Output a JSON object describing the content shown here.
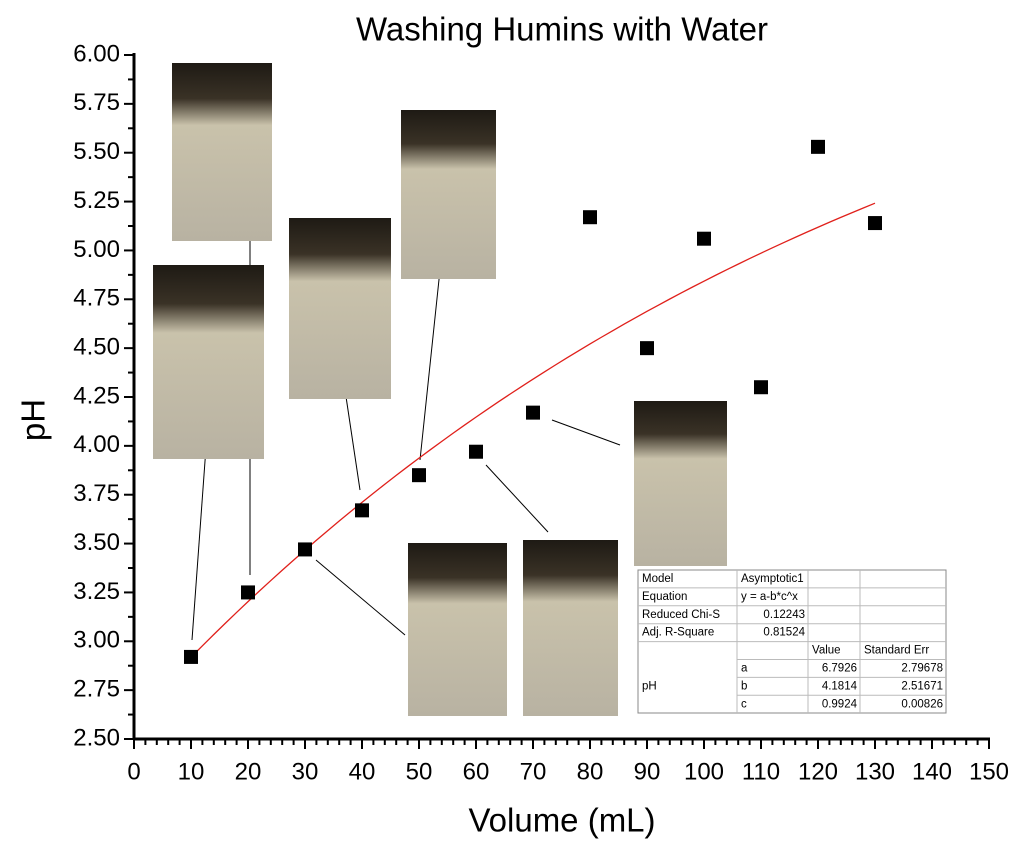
{
  "chart_data": {
    "type": "scatter",
    "title": "Washing Humins with Water",
    "x_label": "Volume (mL)",
    "y_label": "pH",
    "x": [
      10,
      20,
      30,
      40,
      50,
      60,
      70,
      80,
      90,
      100,
      110,
      120,
      130
    ],
    "values": [
      2.92,
      3.25,
      3.47,
      3.67,
      3.85,
      3.97,
      4.17,
      5.17,
      4.5,
      5.06,
      4.3,
      5.53,
      5.14
    ],
    "color": "#000000",
    "fit_color": "#e0201b",
    "xlim": [
      0,
      150
    ],
    "xticks": [
      0,
      10,
      20,
      30,
      40,
      50,
      60,
      70,
      80,
      90,
      100,
      110,
      120,
      130,
      140,
      150
    ],
    "ylim": [
      2.5,
      6.0
    ],
    "yticks": [
      {
        "value": 2.5,
        "label": "2.50"
      },
      {
        "value": 2.75,
        "label": "2.75"
      },
      {
        "value": 3.0,
        "label": "3.00"
      },
      {
        "value": 3.25,
        "label": "3.25"
      },
      {
        "value": 3.5,
        "label": "3.50"
      },
      {
        "value": 3.75,
        "label": "3.75"
      },
      {
        "value": 4.0,
        "label": "4.00"
      },
      {
        "value": 4.25,
        "label": "4.25"
      },
      {
        "value": 4.5,
        "label": "4.50"
      },
      {
        "value": 4.75,
        "label": "4.75"
      },
      {
        "value": 5.0,
        "label": "5.00"
      },
      {
        "value": 5.25,
        "label": "5.25"
      },
      {
        "value": 5.5,
        "label": "5.50"
      },
      {
        "value": 5.75,
        "label": "5.75"
      },
      {
        "value": 6.0,
        "label": "6.00"
      }
    ],
    "fit": {
      "model_label": "Model",
      "model": "Asymptotic1",
      "equation_label": "Equation",
      "equation": "y = a-b*c^x",
      "chi_label": "Reduced Chi-S",
      "chi": 0.12243,
      "r2_label": "Adj. R-Square",
      "r2": 0.81524,
      "value_header": "Value",
      "error_header": "Standard Err",
      "dependent": "pH",
      "params": [
        {
          "name": "a",
          "value": 6.7926,
          "error": 2.79678
        },
        {
          "name": "b",
          "value": 4.1814,
          "error": 2.51671
        },
        {
          "name": "c",
          "value": 0.9924,
          "error": 0.00826
        }
      ]
    }
  }
}
